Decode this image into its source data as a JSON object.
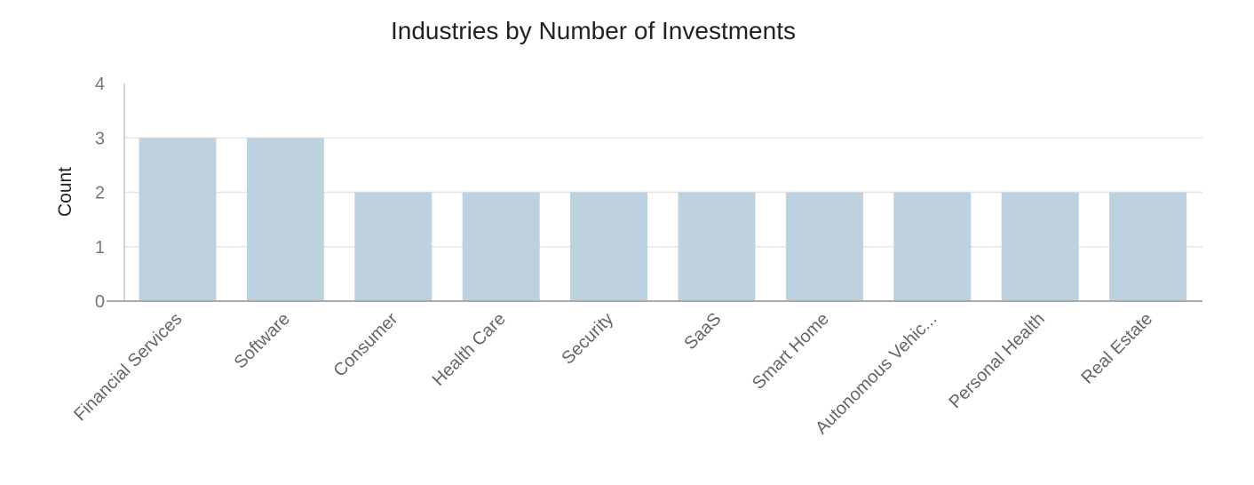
{
  "chart_data": {
    "type": "bar",
    "title": "Industries by Number of Investments",
    "xlabel": "",
    "ylabel": "Count",
    "categories": [
      "Financial Services",
      "Software",
      "Consumer",
      "Health Care",
      "Security",
      "SaaS",
      "Smart Home",
      "Autonomous Vehic...",
      "Personal Health",
      "Real Estate"
    ],
    "values": [
      3,
      3,
      2,
      2,
      2,
      2,
      2,
      2,
      2,
      2
    ],
    "ylim": [
      0,
      4
    ],
    "yticks": [
      0,
      1,
      2,
      3,
      4
    ],
    "grid": true,
    "bar_color": "#bdd1de"
  }
}
